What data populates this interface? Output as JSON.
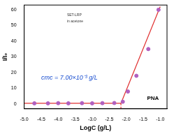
{
  "chart_data": {
    "type": "scatter",
    "x_label": "LogC (g/L)",
    "y_label": "I/I₀",
    "xlim": [
      -5.0,
      -0.8
    ],
    "xticks": [
      {
        "value": -5.0,
        "label": "-5.0"
      },
      {
        "value": -4.5,
        "label": "-4.5"
      },
      {
        "value": -4.0,
        "label": "-4.0"
      },
      {
        "value": -3.5,
        "label": "-3.5"
      },
      {
        "value": -3.0,
        "label": "-3.0"
      },
      {
        "value": -2.5,
        "label": "-2.5"
      },
      {
        "value": -2.0,
        "label": "-2.0"
      },
      {
        "value": -1.5,
        "label": "-1.5"
      },
      {
        "value": -1.0,
        "label": "-1.0"
      }
    ],
    "ylim": [
      -3,
      63
    ],
    "yticks": [
      0,
      10,
      20,
      30,
      40,
      50,
      60
    ],
    "grid": false,
    "series": [
      {
        "type": "scatter",
        "color": "#b060c0",
        "marker": "circle",
        "x": [
          -4.7,
          -4.3,
          -4.0,
          -3.7,
          -3.3,
          -3.0,
          -2.7,
          -2.35,
          -2.1,
          -1.95,
          -1.7,
          -1.35,
          -1.05
        ],
        "values": [
          0.5,
          0.5,
          0.6,
          0.5,
          0.6,
          0.5,
          0.6,
          0.7,
          1.5,
          8,
          18,
          35,
          60
        ]
      },
      {
        "type": "line",
        "color": "#e03030",
        "line_style": "solid",
        "x": [
          -5.0,
          -2.155
        ],
        "values": [
          0.5,
          0.5
        ]
      },
      {
        "type": "line",
        "color": "#e03030",
        "line_style": "solid",
        "x": [
          -2.155,
          -1.0
        ],
        "values": [
          0.5,
          62
        ]
      },
      {
        "type": "line",
        "color": "#e03030",
        "line_style": "dashed",
        "x": [
          -2.155,
          -2.155
        ],
        "values": [
          -3,
          0.5
        ]
      }
    ],
    "annotations": [
      {
        "text": "cmc = 7.00×10⁻³ g/L",
        "color": "#1a4fd0"
      },
      {
        "text": "PNA",
        "color": "#000000"
      },
      {
        "text": "SET-LRP",
        "color": "#333333"
      },
      {
        "text": "in acetone",
        "color": "#333333"
      }
    ]
  }
}
